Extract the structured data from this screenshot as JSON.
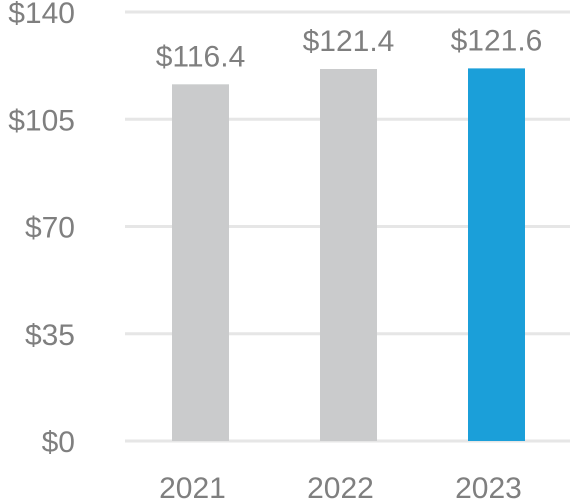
{
  "chart_data": {
    "type": "bar",
    "title": "",
    "xlabel": "",
    "ylabel": "",
    "categories": [
      "2021",
      "2022",
      "2023"
    ],
    "values": [
      116.4,
      121.4,
      121.6
    ],
    "data_labels": [
      "$116.4",
      "$121.4",
      "$121.6"
    ],
    "ylim": [
      0,
      140
    ],
    "yticks": [
      0,
      35,
      70,
      105,
      140
    ],
    "ytick_labels": [
      "$0",
      "$35",
      "$70",
      "$105",
      "$140"
    ],
    "grid": true,
    "legend": "none",
    "bar_colors": [
      "#cacbcc",
      "#cacbcc",
      "#1b9fd9"
    ],
    "text_color": "#7f7f7f",
    "grid_color": "#e6e6e6"
  }
}
